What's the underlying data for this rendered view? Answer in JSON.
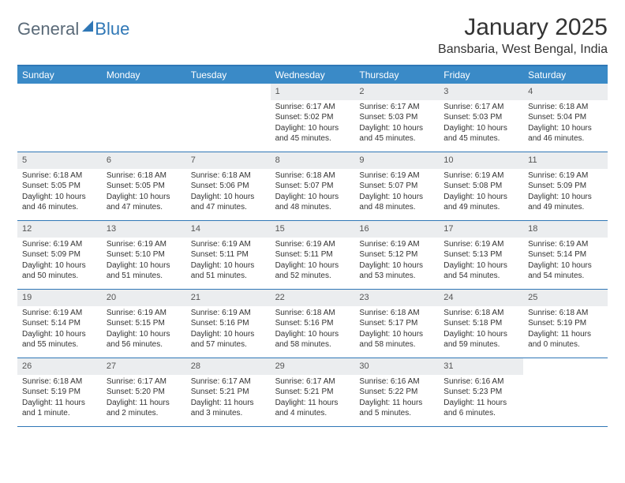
{
  "logo": {
    "part1": "General",
    "part2": "Blue"
  },
  "title": "January 2025",
  "location": "Bansbaria, West Bengal, India",
  "colors": {
    "header_bg": "#3a8ac7",
    "border": "#2f77b6",
    "daynum_bg": "#ebedef",
    "text": "#333333"
  },
  "dayNames": [
    "Sunday",
    "Monday",
    "Tuesday",
    "Wednesday",
    "Thursday",
    "Friday",
    "Saturday"
  ],
  "weeks": [
    [
      {
        "n": "",
        "sr": "",
        "ss": "",
        "dl": ""
      },
      {
        "n": "",
        "sr": "",
        "ss": "",
        "dl": ""
      },
      {
        "n": "",
        "sr": "",
        "ss": "",
        "dl": ""
      },
      {
        "n": "1",
        "sr": "Sunrise: 6:17 AM",
        "ss": "Sunset: 5:02 PM",
        "dl": "Daylight: 10 hours and 45 minutes."
      },
      {
        "n": "2",
        "sr": "Sunrise: 6:17 AM",
        "ss": "Sunset: 5:03 PM",
        "dl": "Daylight: 10 hours and 45 minutes."
      },
      {
        "n": "3",
        "sr": "Sunrise: 6:17 AM",
        "ss": "Sunset: 5:03 PM",
        "dl": "Daylight: 10 hours and 45 minutes."
      },
      {
        "n": "4",
        "sr": "Sunrise: 6:18 AM",
        "ss": "Sunset: 5:04 PM",
        "dl": "Daylight: 10 hours and 46 minutes."
      }
    ],
    [
      {
        "n": "5",
        "sr": "Sunrise: 6:18 AM",
        "ss": "Sunset: 5:05 PM",
        "dl": "Daylight: 10 hours and 46 minutes."
      },
      {
        "n": "6",
        "sr": "Sunrise: 6:18 AM",
        "ss": "Sunset: 5:05 PM",
        "dl": "Daylight: 10 hours and 47 minutes."
      },
      {
        "n": "7",
        "sr": "Sunrise: 6:18 AM",
        "ss": "Sunset: 5:06 PM",
        "dl": "Daylight: 10 hours and 47 minutes."
      },
      {
        "n": "8",
        "sr": "Sunrise: 6:18 AM",
        "ss": "Sunset: 5:07 PM",
        "dl": "Daylight: 10 hours and 48 minutes."
      },
      {
        "n": "9",
        "sr": "Sunrise: 6:19 AM",
        "ss": "Sunset: 5:07 PM",
        "dl": "Daylight: 10 hours and 48 minutes."
      },
      {
        "n": "10",
        "sr": "Sunrise: 6:19 AM",
        "ss": "Sunset: 5:08 PM",
        "dl": "Daylight: 10 hours and 49 minutes."
      },
      {
        "n": "11",
        "sr": "Sunrise: 6:19 AM",
        "ss": "Sunset: 5:09 PM",
        "dl": "Daylight: 10 hours and 49 minutes."
      }
    ],
    [
      {
        "n": "12",
        "sr": "Sunrise: 6:19 AM",
        "ss": "Sunset: 5:09 PM",
        "dl": "Daylight: 10 hours and 50 minutes."
      },
      {
        "n": "13",
        "sr": "Sunrise: 6:19 AM",
        "ss": "Sunset: 5:10 PM",
        "dl": "Daylight: 10 hours and 51 minutes."
      },
      {
        "n": "14",
        "sr": "Sunrise: 6:19 AM",
        "ss": "Sunset: 5:11 PM",
        "dl": "Daylight: 10 hours and 51 minutes."
      },
      {
        "n": "15",
        "sr": "Sunrise: 6:19 AM",
        "ss": "Sunset: 5:11 PM",
        "dl": "Daylight: 10 hours and 52 minutes."
      },
      {
        "n": "16",
        "sr": "Sunrise: 6:19 AM",
        "ss": "Sunset: 5:12 PM",
        "dl": "Daylight: 10 hours and 53 minutes."
      },
      {
        "n": "17",
        "sr": "Sunrise: 6:19 AM",
        "ss": "Sunset: 5:13 PM",
        "dl": "Daylight: 10 hours and 54 minutes."
      },
      {
        "n": "18",
        "sr": "Sunrise: 6:19 AM",
        "ss": "Sunset: 5:14 PM",
        "dl": "Daylight: 10 hours and 54 minutes."
      }
    ],
    [
      {
        "n": "19",
        "sr": "Sunrise: 6:19 AM",
        "ss": "Sunset: 5:14 PM",
        "dl": "Daylight: 10 hours and 55 minutes."
      },
      {
        "n": "20",
        "sr": "Sunrise: 6:19 AM",
        "ss": "Sunset: 5:15 PM",
        "dl": "Daylight: 10 hours and 56 minutes."
      },
      {
        "n": "21",
        "sr": "Sunrise: 6:19 AM",
        "ss": "Sunset: 5:16 PM",
        "dl": "Daylight: 10 hours and 57 minutes."
      },
      {
        "n": "22",
        "sr": "Sunrise: 6:18 AM",
        "ss": "Sunset: 5:16 PM",
        "dl": "Daylight: 10 hours and 58 minutes."
      },
      {
        "n": "23",
        "sr": "Sunrise: 6:18 AM",
        "ss": "Sunset: 5:17 PM",
        "dl": "Daylight: 10 hours and 58 minutes."
      },
      {
        "n": "24",
        "sr": "Sunrise: 6:18 AM",
        "ss": "Sunset: 5:18 PM",
        "dl": "Daylight: 10 hours and 59 minutes."
      },
      {
        "n": "25",
        "sr": "Sunrise: 6:18 AM",
        "ss": "Sunset: 5:19 PM",
        "dl": "Daylight: 11 hours and 0 minutes."
      }
    ],
    [
      {
        "n": "26",
        "sr": "Sunrise: 6:18 AM",
        "ss": "Sunset: 5:19 PM",
        "dl": "Daylight: 11 hours and 1 minute."
      },
      {
        "n": "27",
        "sr": "Sunrise: 6:17 AM",
        "ss": "Sunset: 5:20 PM",
        "dl": "Daylight: 11 hours and 2 minutes."
      },
      {
        "n": "28",
        "sr": "Sunrise: 6:17 AM",
        "ss": "Sunset: 5:21 PM",
        "dl": "Daylight: 11 hours and 3 minutes."
      },
      {
        "n": "29",
        "sr": "Sunrise: 6:17 AM",
        "ss": "Sunset: 5:21 PM",
        "dl": "Daylight: 11 hours and 4 minutes."
      },
      {
        "n": "30",
        "sr": "Sunrise: 6:16 AM",
        "ss": "Sunset: 5:22 PM",
        "dl": "Daylight: 11 hours and 5 minutes."
      },
      {
        "n": "31",
        "sr": "Sunrise: 6:16 AM",
        "ss": "Sunset: 5:23 PM",
        "dl": "Daylight: 11 hours and 6 minutes."
      },
      {
        "n": "",
        "sr": "",
        "ss": "",
        "dl": ""
      }
    ]
  ]
}
